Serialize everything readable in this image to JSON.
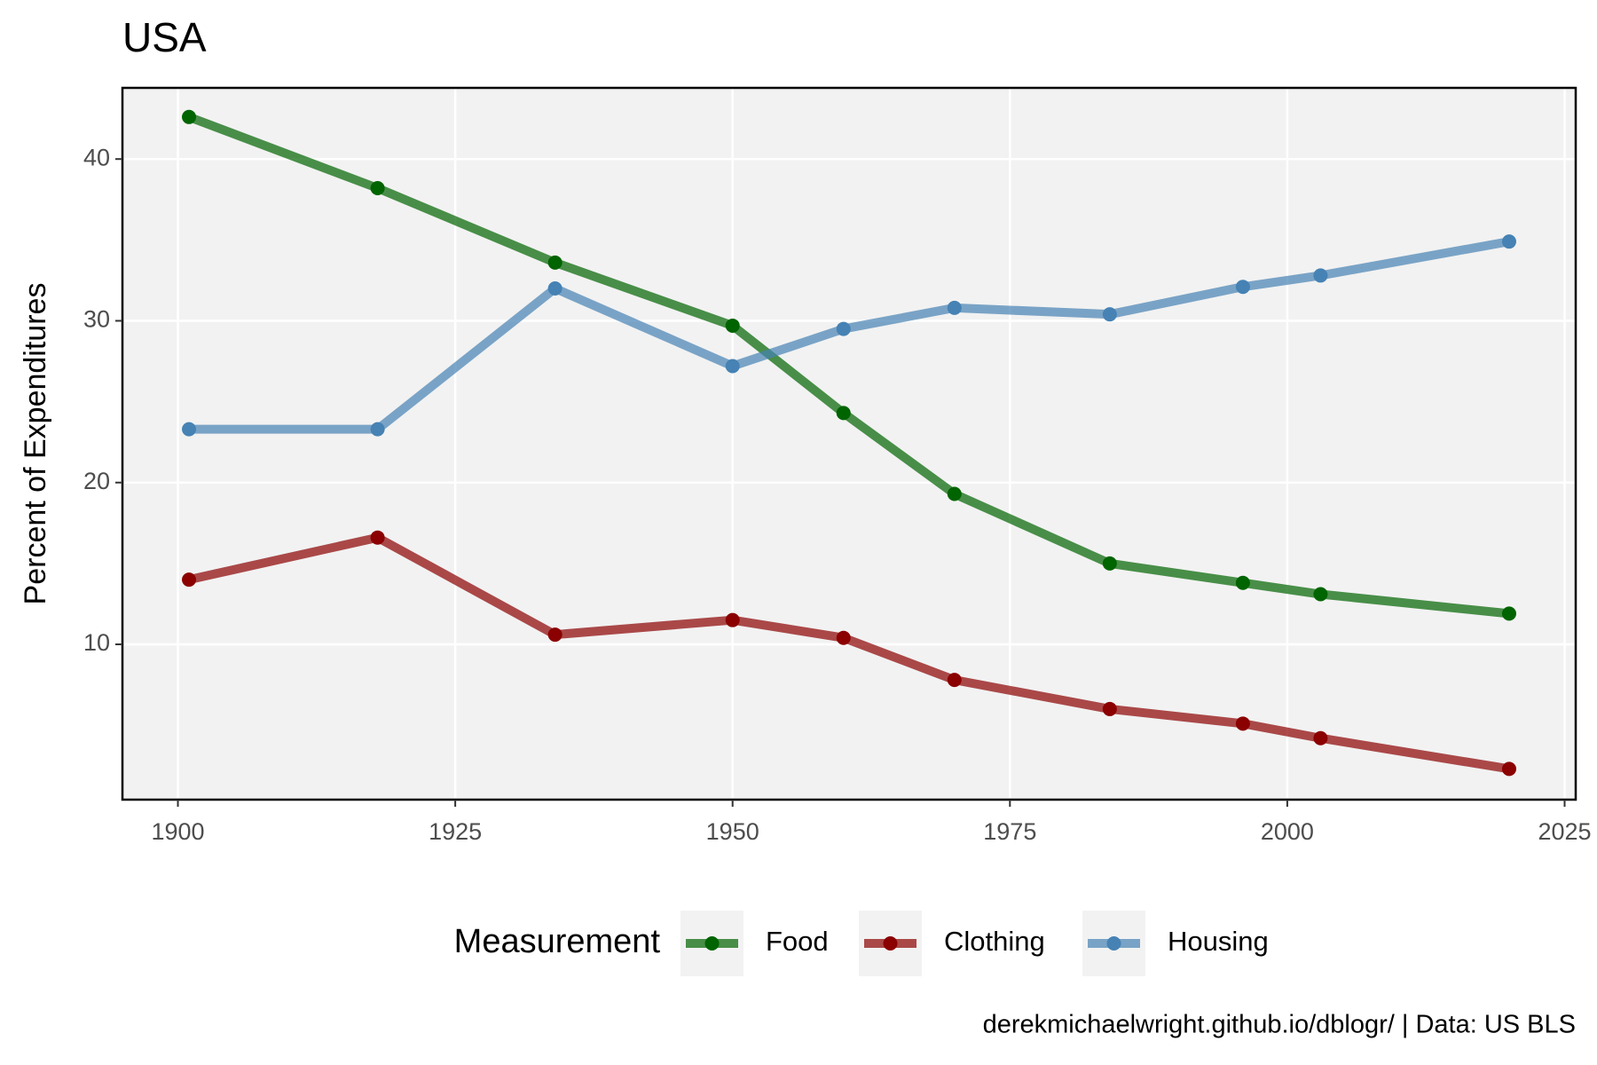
{
  "chart_data": {
    "type": "line",
    "title": "USA",
    "y_label": "Percent of Expenditures",
    "caption": "derekmichaelwright.github.io/dblogr/ | Data: US BLS",
    "legend_title": "Measurement",
    "legend_position": "bottom",
    "grid": true,
    "x": [
      1901,
      1918,
      1934,
      1950,
      1960,
      1970,
      1984,
      1996,
      2003,
      2020
    ],
    "series": [
      {
        "name": "Food",
        "color": "#006400",
        "values": [
          42.6,
          38.2,
          33.6,
          29.7,
          24.3,
          19.3,
          15.0,
          13.8,
          13.1,
          11.9
        ]
      },
      {
        "name": "Clothing",
        "color": "#8b0000",
        "values": [
          14.0,
          16.6,
          10.6,
          11.5,
          10.4,
          7.8,
          6.0,
          5.1,
          4.2,
          2.3
        ]
      },
      {
        "name": "Housing",
        "color": "#4682b4",
        "values": [
          23.3,
          23.3,
          32.0,
          27.2,
          29.5,
          30.8,
          30.4,
          32.1,
          32.8,
          34.9
        ]
      }
    ],
    "xlim": [
      1895,
      2026
    ],
    "xticks": [
      1900,
      1925,
      1950,
      1975,
      2000,
      2025
    ],
    "ylim": [
      0.4,
      44.4
    ],
    "yticks": [
      10,
      20,
      30,
      40
    ]
  }
}
